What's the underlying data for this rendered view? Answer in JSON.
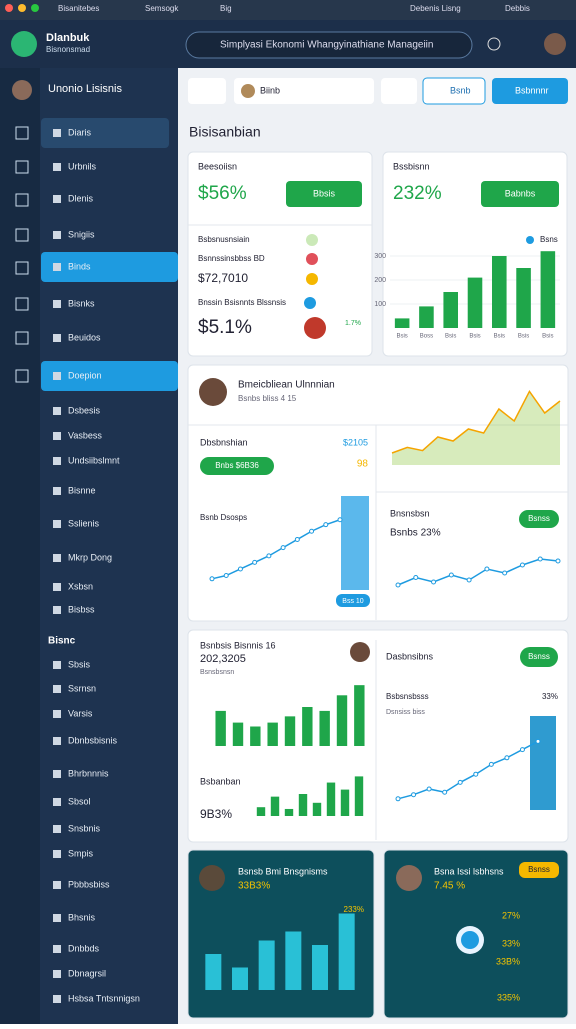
{
  "topbar": {
    "tabs": [
      "Bisanitebes",
      "Semsogk",
      "Big",
      "Debenis Lisng",
      "Debbis"
    ]
  },
  "header": {
    "logo": "Dlanbuk",
    "logo_sub": "Bisnonsmad",
    "search": "Simplyasi Ekonomi Whangyinathiane Manageiin"
  },
  "sidebar": {
    "user": "Unonio Lisisnis",
    "active": [
      4,
      7
    ],
    "items": [
      "Diaris",
      "Urbnils",
      "Dlenis",
      "Snigiis",
      "Binds",
      "Bisnks",
      "Beuidos",
      "Doepion",
      "Dsbesis",
      "Vasbess",
      "Undsiibslmnt",
      "Bisnne",
      "Sslienis",
      "Mkrp Dong",
      "Xsbsn",
      "Bisbss",
      "Sbsis",
      "Ssrnsn",
      "Varsis",
      "Dbnbsbisnis",
      "Bhrbnnnis",
      "Sbsol",
      "Snsbnis",
      "Smpis",
      "Pbbbsbiss",
      "Bhsnis",
      "Dnbbds",
      "Dbnagrsil",
      "Hsbsa Tntsnnigsn"
    ],
    "section": "Bisnc"
  },
  "toolbar": {
    "filter": "Biinb",
    "button1": "Bsnb",
    "button2": "Bsbnnnr"
  },
  "main": {
    "title": "Bisisanbian"
  },
  "cards": {
    "a": {
      "title": "Beesoiisn",
      "value": "$56%",
      "button": "Bbsis",
      "row1": "Bsbsnusnsiain",
      "row2": "Bsnnssinsbbss BD",
      "row3": "$72,7010",
      "row4": "Bnssin Bsisnnts Blssnsis",
      "value2": "$5.1%",
      "tag": "1.7%"
    },
    "b": {
      "title": "Bssbisnn",
      "value": "232%",
      "button": "Babnbs",
      "legend": "Bsns"
    },
    "c": {
      "person": "Bmeicbliean Ulnnnian",
      "sub": "Bsnbs bliss 4 15",
      "label": "Dbsbnshian",
      "amount": "$2105",
      "badge": "Bnbs $6B36",
      "num": "98",
      "line_title": "Bsnb Dsosps",
      "right_title": "Bnsnsbsn",
      "right_value": "Bsnbs 23%",
      "right_badge": "Bsnss",
      "chip": "Bss 10"
    },
    "d": {
      "title": "Bsnbsis Bisnnis 16",
      "value": "202,3205",
      "sub": "Bsnsbsnsn",
      "small_title": "Bsbanban",
      "small_value": "9B3%",
      "right_title": "Dasbnsibns",
      "right_badge": "Bsnss",
      "legend": "Bsbsnsbsss",
      "legend2": "Dsnsiss biss",
      "pct": "33%"
    },
    "e": {
      "title": "Bsnsb Bmi Bnsgnisms",
      "value": "33B3%",
      "pct": "233%"
    },
    "f": {
      "title": "Bsna Issi lsbhsns",
      "value": "7.45 %",
      "badge": "Bsnss",
      "p1": "27%",
      "p2": "33%",
      "p3": "33B%",
      "p4": "335%"
    }
  },
  "chart_data": [
    {
      "type": "bar",
      "values": [
        40,
        90,
        150,
        210,
        300,
        250,
        320
      ],
      "color": "#1fa64a",
      "ylim": [
        0,
        400
      ],
      "yticks": [
        100,
        200,
        300
      ],
      "categories": [
        "Bsis",
        "Boss",
        "Bsis",
        "Bsis",
        "Bsis",
        "Bsis",
        "Bsis"
      ]
    },
    {
      "type": "area",
      "values": [
        15,
        22,
        18,
        35,
        30,
        45,
        40,
        70,
        55,
        92,
        65,
        80
      ],
      "color": "#8cc63f",
      "ylim": [
        0,
        100
      ]
    },
    {
      "type": "line",
      "values": [
        10,
        14,
        22,
        30,
        38,
        48,
        58,
        68,
        76,
        82
      ],
      "color": "#1e9be0",
      "ylim": [
        0,
        100
      ]
    },
    {
      "type": "line",
      "values": [
        20,
        35,
        26,
        40,
        30,
        52,
        44,
        60,
        72,
        68
      ],
      "color": "#1e9be0",
      "ylim": [
        0,
        100
      ]
    },
    {
      "type": "bar",
      "values": [
        45,
        30,
        25,
        30,
        38,
        50,
        45,
        65,
        78
      ],
      "color": "#1fa64a",
      "ylim": [
        0,
        100
      ]
    },
    {
      "type": "bar",
      "values": [
        10,
        22,
        8,
        25,
        15,
        38,
        30,
        45
      ],
      "color": "#1fa64a",
      "ylim": [
        0,
        50
      ]
    },
    {
      "type": "line",
      "values": [
        10,
        15,
        22,
        18,
        30,
        40,
        52,
        60,
        70,
        80
      ],
      "color": "#1e9be0",
      "ylim": [
        0,
        100
      ]
    },
    {
      "type": "bar",
      "values": [
        40,
        25,
        55,
        65,
        50,
        85
      ],
      "color": "#29c0d6",
      "ylim": [
        0,
        100
      ]
    }
  ]
}
